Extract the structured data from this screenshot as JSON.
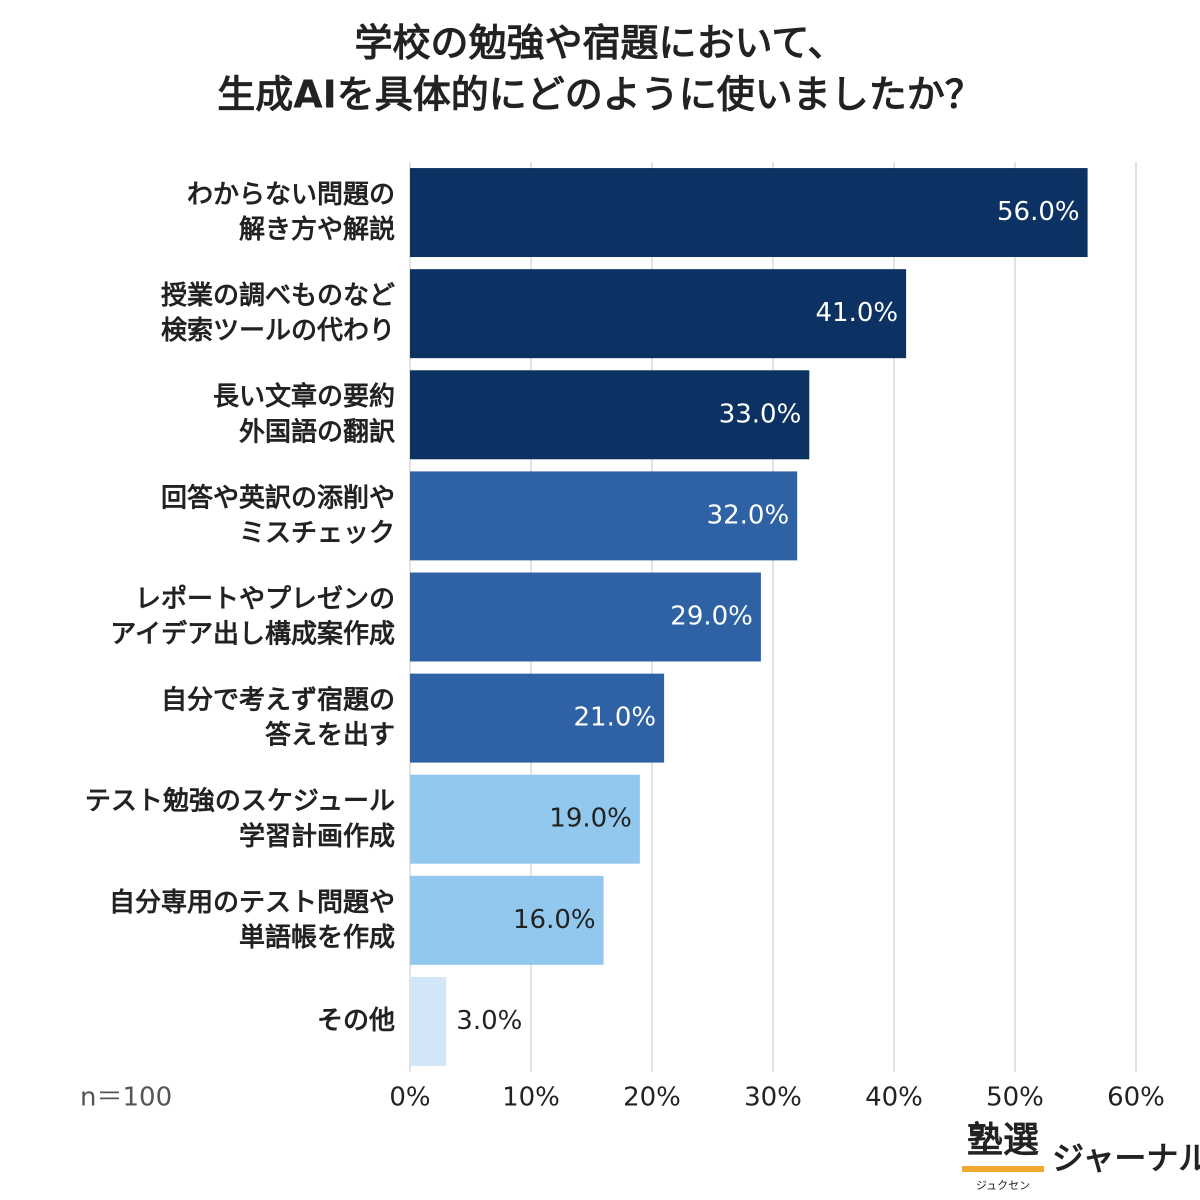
{
  "chart_data": {
    "type": "bar",
    "orientation": "horizontal",
    "title": "学校の勉強や宿題において、\n生成AIを具体的にどのように使いましたか？",
    "categories": [
      "わからない問題の\n解き方や解説",
      "授業の調べものなど\n検索ツールの代わり",
      "長い文章の要約\n外国語の翻訳",
      "回答や英訳の添削や\nミスチェック",
      "レポートやプレゼンの\nアイデア出し構成案作成",
      "自分で考えず宿題の\n答えを出す",
      "テスト勉強のスケジュール\n学習計画作成",
      "自分専用のテスト問題や\n単語帳を作成",
      "その他"
    ],
    "values": [
      56,
      41,
      33,
      32,
      29,
      21,
      19,
      16,
      3
    ],
    "value_labels": [
      "56.0%",
      "41.0%",
      "33.0%",
      "32.0%",
      "29.0%",
      "21.0%",
      "19.0%",
      "16.0%",
      "3.0%"
    ],
    "colors": [
      "#0b3263",
      "#0b3263",
      "#0b3263",
      "#2e62a5",
      "#2e62a5",
      "#2e62a5",
      "#93c8ee",
      "#93c8ee",
      "#d2e6f8"
    ],
    "xlim": [
      0,
      60
    ],
    "xticks": [
      {
        "value": 0,
        "label": "0%"
      },
      {
        "value": 10,
        "label": "10%"
      },
      {
        "value": 20,
        "label": "20%"
      },
      {
        "value": 30,
        "label": "30%"
      },
      {
        "value": 40,
        "label": "40%"
      },
      {
        "value": 50,
        "label": "50%"
      },
      {
        "value": 60,
        "label": "60%"
      }
    ],
    "grid": true,
    "note": "n＝100"
  },
  "logo": {
    "name": "塾選",
    "reading": "ジュクセン",
    "suffix": "ジャーナル"
  }
}
